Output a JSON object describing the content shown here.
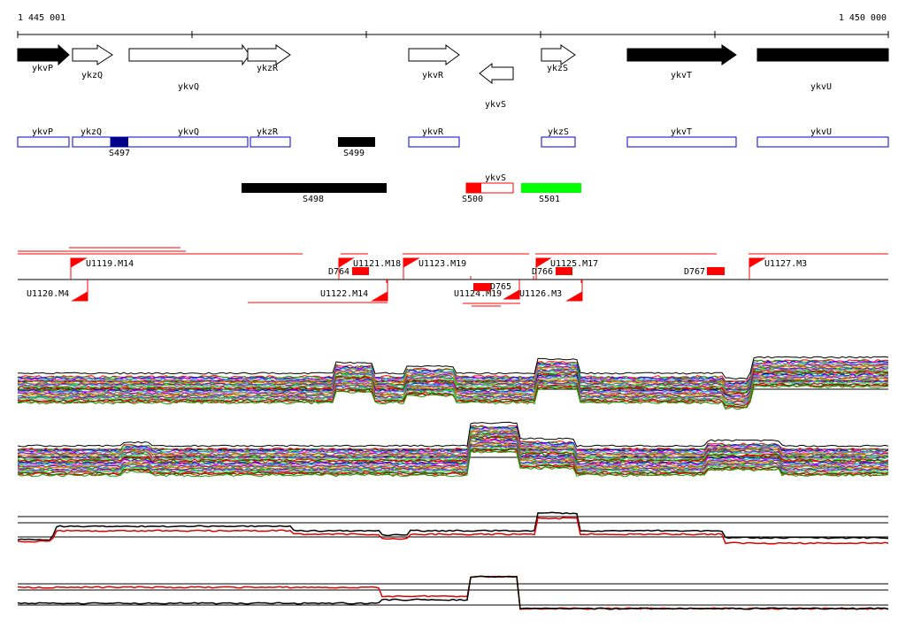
{
  "ruler": {
    "start_label": "1 445 001",
    "end_label": "1 450 000"
  },
  "genes": [
    {
      "name": "ykvP",
      "filled": true,
      "dir": "right"
    },
    {
      "name": "ykzQ",
      "filled": false,
      "dir": "right"
    },
    {
      "name": "ykvQ",
      "filled": false,
      "dir": "right"
    },
    {
      "name": "ykzR",
      "filled": false,
      "dir": "right"
    },
    {
      "name": "ykvR",
      "filled": false,
      "dir": "right"
    },
    {
      "name": "ykvS",
      "filled": false,
      "dir": "left"
    },
    {
      "name": "ykzS",
      "filled": false,
      "dir": "right"
    },
    {
      "name": "ykvT",
      "filled": true,
      "dir": "right"
    },
    {
      "name": "ykvU",
      "filled": true,
      "dir": "right"
    }
  ],
  "gene_boxes": [
    {
      "name": "ykvP"
    },
    {
      "name": "ykzQ"
    },
    {
      "name": "ykvQ"
    },
    {
      "name": "ykzR"
    },
    {
      "name": "ykvR"
    },
    {
      "name": "ykzS"
    },
    {
      "name": "ykvT"
    },
    {
      "name": "ykvU"
    },
    {
      "name": "ykvS"
    }
  ],
  "segments": [
    {
      "name": "S497",
      "color": "#00008b"
    },
    {
      "name": "S499",
      "color": "#000000"
    },
    {
      "name": "S498",
      "color": "#000000"
    },
    {
      "name": "S500",
      "color": "#ff0000"
    },
    {
      "name": "S501",
      "color": "#00ff00"
    }
  ],
  "upper_features": [
    {
      "name": "U1119.M14"
    },
    {
      "name": "U1121.M18"
    },
    {
      "name": "U1123.M19"
    },
    {
      "name": "U1125.M17"
    },
    {
      "name": "U1127.M3"
    }
  ],
  "lower_features": [
    {
      "name": "U1120.M4"
    },
    {
      "name": "U1122.M14"
    },
    {
      "name": "U1124.M19"
    },
    {
      "name": "U1126.M3"
    }
  ],
  "deletions": [
    {
      "name": "D764"
    },
    {
      "name": "D765"
    },
    {
      "name": "D766"
    },
    {
      "name": "D767"
    }
  ],
  "colors": {
    "filled_gene": "#000000",
    "box_outline": "#0000cc",
    "feature_red": "#ff0000",
    "trace_black": "#000000",
    "trace_red": "#e00000"
  }
}
